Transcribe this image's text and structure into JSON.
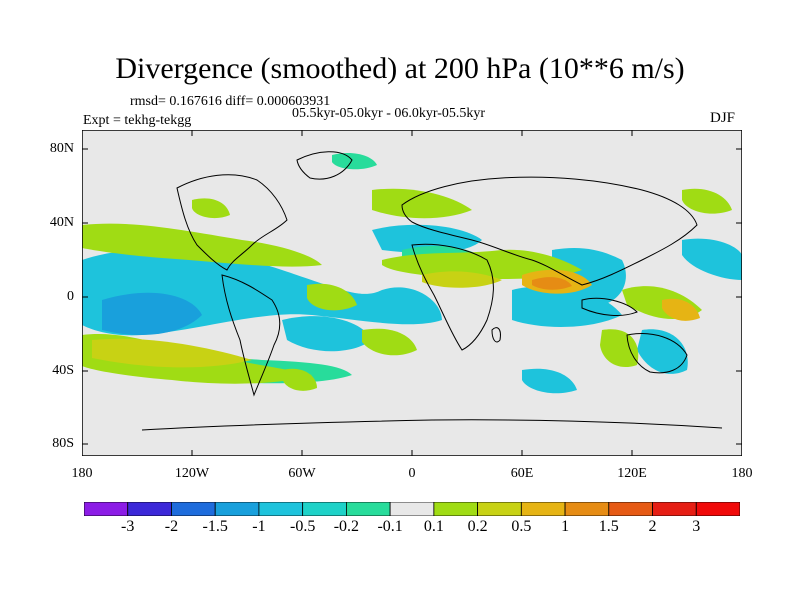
{
  "title": "Divergence (smoothed) at 200 hPa (10**6 m/s)",
  "stats_line": "rmsd= 0.167616  diff= 0.000603931",
  "period_line": "05.5kyr-05.0kyr - 06.0kyr-05.5kyr",
  "expt_line": "Expt = tekhg-tekgg",
  "season": "DJF",
  "lat_labels": [
    "80N",
    "40N",
    "0",
    "40S",
    "80S"
  ],
  "lon_labels": [
    "180",
    "120W",
    "60W",
    "0",
    "60E",
    "120E",
    "180"
  ],
  "colorbar": {
    "labels": [
      "-3",
      "-2",
      "-1.5",
      "-1",
      "-0.5",
      "-0.2",
      "-0.1",
      "0.1",
      "0.2",
      "0.5",
      "1",
      "1.5",
      "2",
      "3"
    ],
    "colors": [
      "#8c1ce6",
      "#3c28d8",
      "#1e6cdc",
      "#19a0dc",
      "#1ec3dc",
      "#1ed2c8",
      "#28dc9b",
      "#e8e8e8",
      "#a0dc14",
      "#c8d214",
      "#e6b414",
      "#e68c14",
      "#e65a14",
      "#e61e14",
      "#f00a0a"
    ]
  }
}
